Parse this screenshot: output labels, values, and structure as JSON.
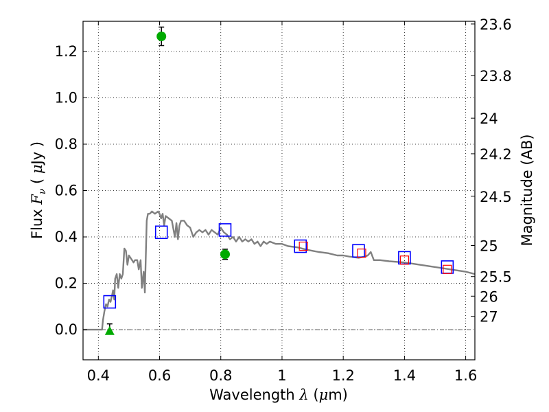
{
  "chart_data": {
    "type": "scatter",
    "title": "",
    "xlabel": {
      "pre": "Wavelength  ",
      "sym": "λ",
      "post": " (",
      "mu": "μ",
      "unit": "m)"
    },
    "ylabel": {
      "pre": "Flux  ",
      "sym": "F",
      "sub": "ν",
      "mid": "  ( ",
      "mu": "μ",
      "unit": "Jy )"
    },
    "y2label": "Magnitude (AB)",
    "xlim": [
      0.35,
      1.63
    ],
    "ylim": [
      -0.13,
      1.33
    ],
    "grid": true,
    "xticks": [
      {
        "v": 0.4,
        "label": "0.4"
      },
      {
        "v": 0.6,
        "label": "0.6"
      },
      {
        "v": 0.8,
        "label": "0.8"
      },
      {
        "v": 1.0,
        "label": "1"
      },
      {
        "v": 1.2,
        "label": "1.2"
      },
      {
        "v": 1.4,
        "label": "1.4"
      },
      {
        "v": 1.6,
        "label": "1.6"
      }
    ],
    "yticks": [
      {
        "v": 0.0,
        "label": "0.0"
      },
      {
        "v": 0.2,
        "label": "0.2"
      },
      {
        "v": 0.4,
        "label": "0.4"
      },
      {
        "v": 0.6,
        "label": "0.6"
      },
      {
        "v": 0.8,
        "label": "0.8"
      },
      {
        "v": 1.0,
        "label": "1.0"
      },
      {
        "v": 1.2,
        "label": "1.2"
      }
    ],
    "y2ticks": [
      {
        "mag": 23.6,
        "label": "23.6"
      },
      {
        "mag": 23.8,
        "label": "23.8"
      },
      {
        "mag": 24.0,
        "label": "24"
      },
      {
        "mag": 24.2,
        "label": "24.2"
      },
      {
        "mag": 24.5,
        "label": "24.5"
      },
      {
        "mag": 25.0,
        "label": "25"
      },
      {
        "mag": 25.5,
        "label": "25.5"
      },
      {
        "mag": 26.0,
        "label": "26"
      },
      {
        "mag": 27.0,
        "label": "27"
      }
    ],
    "zero_line": 0.0,
    "model_sed": {
      "color": "#808080",
      "x": [
        0.35,
        0.412,
        0.415,
        0.42,
        0.425,
        0.43,
        0.435,
        0.44,
        0.445,
        0.448,
        0.452,
        0.455,
        0.46,
        0.465,
        0.47,
        0.475,
        0.48,
        0.485,
        0.49,
        0.495,
        0.5,
        0.505,
        0.51,
        0.515,
        0.52,
        0.527,
        0.532,
        0.538,
        0.542,
        0.548,
        0.552,
        0.558,
        0.562,
        0.568,
        0.575,
        0.585,
        0.595,
        0.6,
        0.605,
        0.61,
        0.615,
        0.62,
        0.63,
        0.64,
        0.65,
        0.655,
        0.66,
        0.665,
        0.67,
        0.68,
        0.69,
        0.7,
        0.71,
        0.72,
        0.73,
        0.74,
        0.75,
        0.76,
        0.77,
        0.78,
        0.79,
        0.8,
        0.81,
        0.82,
        0.83,
        0.84,
        0.85,
        0.86,
        0.87,
        0.88,
        0.89,
        0.9,
        0.91,
        0.92,
        0.93,
        0.94,
        0.95,
        0.96,
        0.98,
        1.0,
        1.02,
        1.05,
        1.08,
        1.1,
        1.12,
        1.15,
        1.18,
        1.2,
        1.22,
        1.25,
        1.27,
        1.28,
        1.29,
        1.3,
        1.32,
        1.35,
        1.4,
        1.45,
        1.5,
        1.55,
        1.6,
        1.63
      ],
      "y": [
        0.0,
        0.0,
        0.04,
        0.08,
        0.11,
        0.1,
        0.13,
        0.12,
        0.15,
        0.17,
        0.13,
        0.22,
        0.24,
        0.18,
        0.24,
        0.22,
        0.24,
        0.35,
        0.34,
        0.28,
        0.32,
        0.31,
        0.3,
        0.29,
        0.3,
        0.3,
        0.26,
        0.3,
        0.18,
        0.25,
        0.16,
        0.47,
        0.5,
        0.5,
        0.51,
        0.5,
        0.51,
        0.5,
        0.48,
        0.5,
        0.45,
        0.49,
        0.48,
        0.47,
        0.4,
        0.46,
        0.39,
        0.45,
        0.47,
        0.47,
        0.45,
        0.44,
        0.4,
        0.42,
        0.43,
        0.42,
        0.43,
        0.41,
        0.43,
        0.42,
        0.41,
        0.44,
        0.42,
        0.41,
        0.39,
        0.4,
        0.38,
        0.4,
        0.38,
        0.39,
        0.38,
        0.39,
        0.37,
        0.38,
        0.36,
        0.38,
        0.37,
        0.38,
        0.37,
        0.37,
        0.36,
        0.355,
        0.345,
        0.34,
        0.335,
        0.33,
        0.32,
        0.32,
        0.315,
        0.31,
        0.315,
        0.32,
        0.335,
        0.3,
        0.3,
        0.295,
        0.29,
        0.28,
        0.27,
        0.26,
        0.25,
        0.24
      ]
    },
    "model_photometry": {
      "marker": "square",
      "color": "#0000ff",
      "x": [
        0.437,
        0.606,
        0.814,
        1.06,
        1.25,
        1.4,
        1.54
      ],
      "y": [
        0.12,
        0.42,
        0.43,
        0.36,
        0.34,
        0.31,
        0.27
      ]
    },
    "observed_photometry": {
      "marker": "square",
      "color": "#ff0000",
      "x": [
        1.07,
        1.26,
        1.4,
        1.54
      ],
      "y": [
        0.36,
        0.33,
        0.3,
        0.26
      ]
    },
    "detections": {
      "marker": "circle",
      "color": "#00aa00",
      "x": [
        0.606,
        0.814
      ],
      "y": [
        1.265,
        0.325
      ],
      "yerr": [
        0.04,
        0.022
      ]
    },
    "upper_limit": {
      "marker": "triangle",
      "color": "#00aa00",
      "x": [
        0.437
      ],
      "y": [
        -0.005
      ],
      "yerr": [
        0.03
      ]
    }
  }
}
